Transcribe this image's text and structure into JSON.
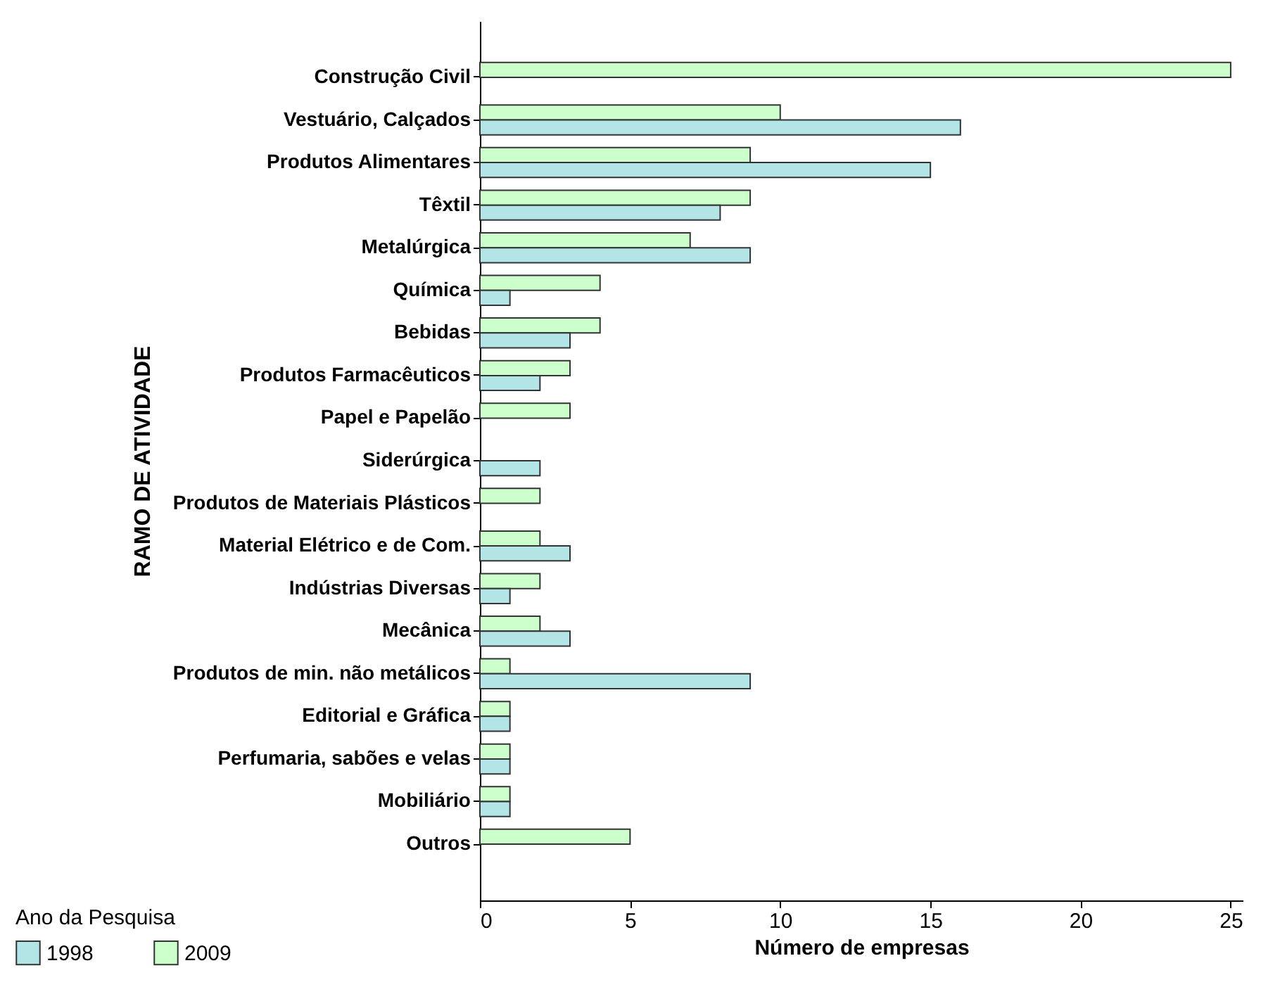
{
  "chart_data": {
    "type": "bar",
    "orientation": "horizontal",
    "xlabel": "Número de empresas",
    "ylabel": "RAMO DE ATIVIDADE",
    "legend_title": "Ano da Pesquisa",
    "categories": [
      "Construção Civil",
      "Vestuário, Calçados",
      "Produtos Alimentares",
      "Têxtil",
      "Metalúrgica",
      "Química",
      "Bebidas",
      "Produtos Farmacêuticos",
      "Papel e Papelão",
      "Siderúrgica",
      "Produtos de Materiais Plásticos",
      "Material Elétrico e de Com.",
      "Indústrias Diversas",
      "Mecânica",
      "Produtos de min. não metálicos",
      "Editorial e Gráfica",
      "Perfumaria, sabões e velas",
      "Mobiliário",
      "Outros"
    ],
    "series": [
      {
        "name": "2009",
        "color": "#ccffcc",
        "values": [
          25,
          10,
          9,
          9,
          7,
          4,
          4,
          3,
          3,
          null,
          2,
          2,
          2,
          2,
          1,
          1,
          1,
          1,
          5
        ]
      },
      {
        "name": "1998",
        "color": "#b3e4e6",
        "values": [
          null,
          16,
          15,
          8,
          9,
          1,
          3,
          2,
          null,
          2,
          null,
          3,
          1,
          3,
          9,
          1,
          1,
          1,
          null
        ]
      }
    ],
    "xlim": [
      0,
      25.4
    ],
    "xticks": [
      0,
      5,
      10,
      15,
      20,
      25
    ],
    "grid": false,
    "legend": "bottom left"
  }
}
